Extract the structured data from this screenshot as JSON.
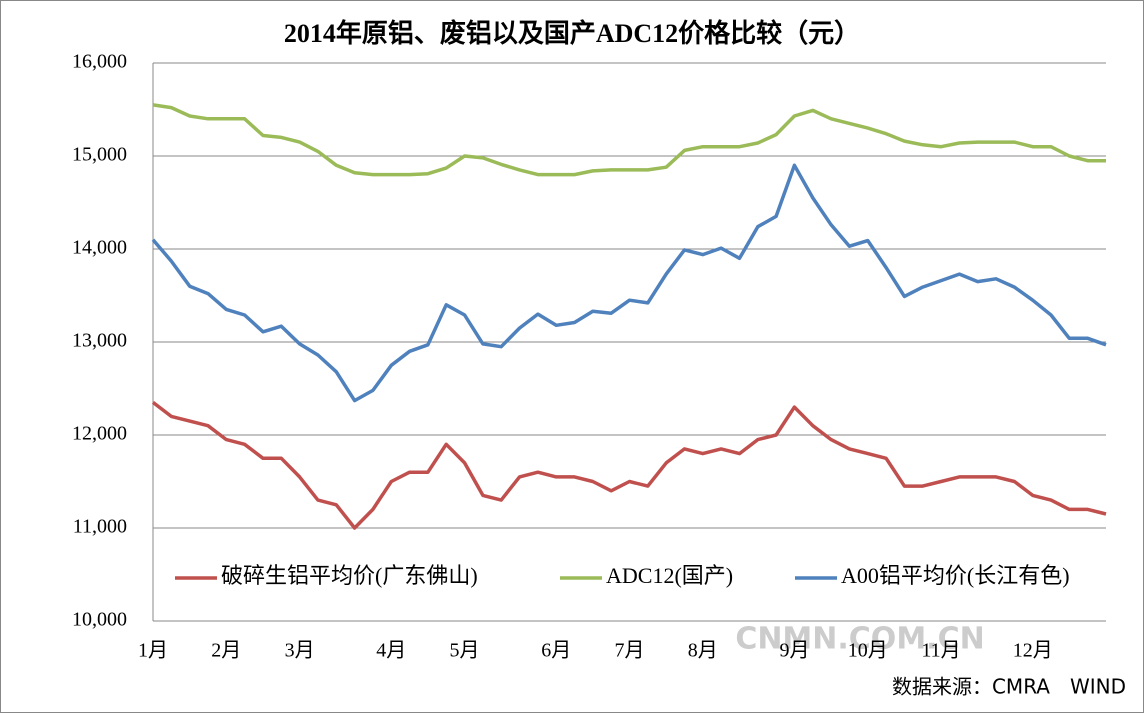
{
  "chart_data": {
    "type": "line",
    "title": "2014年原铝、废铝以及国产ADC12价格比较（元）",
    "categories": [
      "1月",
      null,
      null,
      null,
      "2月",
      null,
      null,
      null,
      "3月",
      null,
      null,
      null,
      null,
      "4月",
      null,
      null,
      null,
      "5月",
      null,
      null,
      null,
      null,
      "6月",
      null,
      null,
      null,
      "7月",
      null,
      null,
      null,
      "8月",
      null,
      null,
      null,
      null,
      "9月",
      null,
      null,
      null,
      "10月",
      null,
      null,
      null,
      "11月",
      null,
      null,
      null,
      null,
      "12月",
      null,
      null,
      null,
      null
    ],
    "series": [
      {
        "name": "破碎生铝平均价(广东佛山)",
        "color": "#c0504d",
        "values": [
          12350,
          12200,
          12150,
          12100,
          11950,
          11900,
          11750,
          11750,
          11550,
          11300,
          11250,
          11000,
          11200,
          11500,
          11600,
          11600,
          11900,
          11700,
          11350,
          11300,
          11550,
          11600,
          11550,
          11550,
          11500,
          11400,
          11500,
          11450,
          11700,
          11850,
          11800,
          11850,
          11800,
          11950,
          12000,
          12300,
          12100,
          11950,
          11850,
          11800,
          11750,
          11450,
          11450,
          11500,
          11550,
          11550,
          11550,
          11500,
          11350,
          11300,
          11200,
          11200,
          11150
        ]
      },
      {
        "name": "ADC12(国产)",
        "color": "#9bbb59",
        "values": [
          15550,
          15520,
          15430,
          15400,
          15400,
          15400,
          15220,
          15200,
          15150,
          15050,
          14900,
          14820,
          14800,
          14800,
          14800,
          14810,
          14870,
          15000,
          14980,
          14910,
          14850,
          14800,
          14800,
          14800,
          14840,
          14850,
          14850,
          14850,
          14880,
          15060,
          15100,
          15100,
          15100,
          15140,
          15230,
          15430,
          15490,
          15400,
          15350,
          15300,
          15240,
          15160,
          15120,
          15100,
          15140,
          15150,
          15150,
          15150,
          15100,
          15100,
          15000,
          14950,
          14950
        ]
      },
      {
        "name": "A00铝平均价(长江有色)",
        "color": "#4f81bd",
        "values": [
          14100,
          13870,
          13600,
          13520,
          13350,
          13290,
          13110,
          13170,
          12980,
          12860,
          12680,
          12370,
          12480,
          12750,
          12900,
          12970,
          13400,
          13290,
          12980,
          12950,
          13150,
          13300,
          13180,
          13210,
          13330,
          13310,
          13450,
          13420,
          13730,
          13990,
          13940,
          14010,
          13900,
          14240,
          14350,
          14900,
          14550,
          14260,
          14030,
          14090,
          13800,
          13490,
          13590,
          13660,
          13730,
          13650,
          13680,
          13590,
          13450,
          13290,
          13040,
          13040,
          12970
        ]
      }
    ],
    "ylim": [
      10000,
      16000
    ],
    "yticks": [
      {
        "value": 10000,
        "label": "10,000"
      },
      {
        "value": 11000,
        "label": "11,000"
      },
      {
        "value": 12000,
        "label": "12,000"
      },
      {
        "value": 13000,
        "label": "13,000"
      },
      {
        "value": 14000,
        "label": "14,000"
      },
      {
        "value": 15000,
        "label": "15,000"
      },
      {
        "value": 16000,
        "label": "16,000"
      }
    ],
    "grid": true,
    "legend": "bottom",
    "watermark": "CNMN.COM.CN",
    "source": "数据来源：CMRA　WIND"
  }
}
